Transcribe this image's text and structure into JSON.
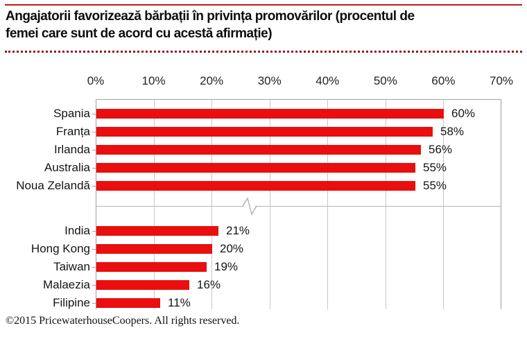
{
  "header": {
    "title": "Angajatorii favorizează bărbații în privința promovărilor (procentul de femei care sunt de acord cu acestă afirmație)"
  },
  "footer": {
    "text": "©2015 PricewaterhouseCoopers. All rights reserved."
  },
  "colors": {
    "bar": "#ea0e0e",
    "top_rule": "#bb1a1a",
    "dotted_rule": "#8e1b1b",
    "gridline": "#c6c6c6",
    "axis_edge": "#9e9e9e",
    "break_line": "#b4b4b4"
  },
  "chart_data": {
    "type": "bar",
    "orientation": "horizontal",
    "title": "Angajatorii favorizează bărbații în privința promovărilor (procentul de femei care sunt de acord cu acestă afirmație)",
    "xlabel": "",
    "ylabel": "",
    "xlim": [
      0,
      70
    ],
    "x_ticks": [
      "0%",
      "10%",
      "20%",
      "30%",
      "40%",
      "50%",
      "60%",
      "70%"
    ],
    "grid": true,
    "axis_break_between_groups": true,
    "groups": [
      {
        "categories": [
          "Spania",
          "Franța",
          "Irlanda",
          "Australia",
          "Noua Zelandă"
        ],
        "values": [
          60,
          58,
          56,
          55,
          55
        ],
        "value_labels": [
          "60%",
          "58%",
          "56%",
          "55%",
          "55%"
        ]
      },
      {
        "categories": [
          "India",
          "Hong Kong",
          "Taiwan",
          "Malaezia",
          "Filipine"
        ],
        "values": [
          21,
          20,
          19,
          16,
          11
        ],
        "value_labels": [
          "21%",
          "20%",
          "19%",
          "16%",
          "11%"
        ]
      }
    ]
  }
}
